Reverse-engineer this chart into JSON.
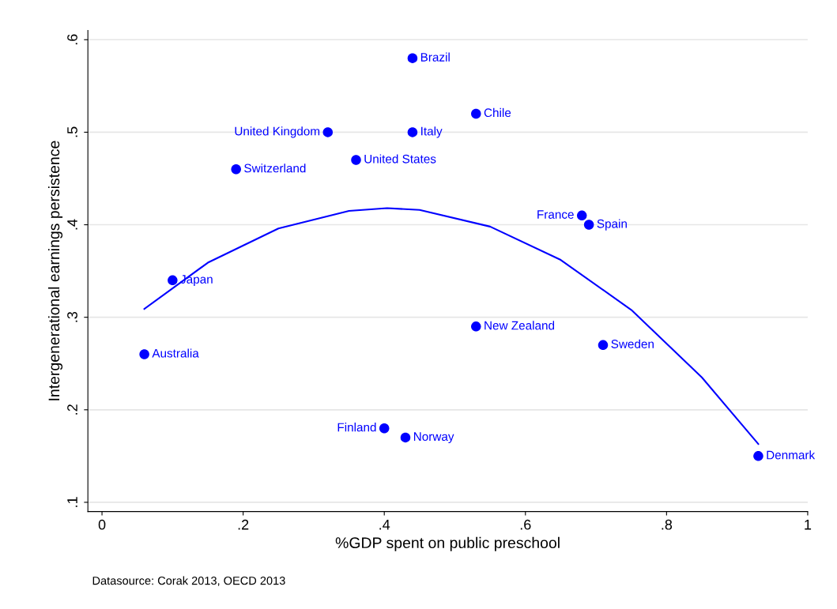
{
  "chart_data": {
    "type": "scatter",
    "xlabel": "%GDP spent on public preschool",
    "ylabel": "Intergenerational earnings persistence",
    "annotations": [
      "Datasource: Corak 2013, OECD 2013"
    ],
    "xlim": [
      -0.02,
      1.0
    ],
    "ylim": [
      0.09,
      0.61
    ],
    "xticks": [
      {
        "value": 0,
        "label": "0"
      },
      {
        "value": 0.2,
        "label": ".2"
      },
      {
        "value": 0.4,
        "label": ".4"
      },
      {
        "value": 0.6,
        "label": ".6"
      },
      {
        "value": 0.8,
        "label": ".8"
      },
      {
        "value": 1,
        "label": "1"
      }
    ],
    "yticks": [
      {
        "value": 0.1,
        "label": ".1"
      },
      {
        "value": 0.2,
        "label": ".2"
      },
      {
        "value": 0.3,
        "label": ".3"
      },
      {
        "value": 0.4,
        "label": ".4"
      },
      {
        "value": 0.5,
        "label": ".5"
      },
      {
        "value": 0.6,
        "label": ".6"
      }
    ],
    "grid": "y",
    "marker": "circle",
    "series": [
      {
        "color": "#0000ff",
        "x": [
          0.44,
          0.53,
          0.32,
          0.44,
          0.36,
          0.19,
          0.68,
          0.69,
          0.1,
          0.53,
          0.71,
          0.06,
          0.4,
          0.43,
          0.93
        ],
        "values": [
          0.58,
          0.52,
          0.5,
          0.5,
          0.47,
          0.46,
          0.41,
          0.4,
          0.34,
          0.29,
          0.27,
          0.26,
          0.18,
          0.17,
          0.15
        ],
        "value_labels": [
          "Brazil",
          "Chile",
          "United Kingdom",
          "Italy",
          "United States",
          "Switzerland",
          "France",
          "Spain",
          "Japan",
          "New Zealand",
          "Sweden",
          "Australia",
          "Finland",
          "Norway",
          "Denmark"
        ]
      },
      {
        "type": "line",
        "color": "#0000ff",
        "marker": "none",
        "line_style": "solid",
        "x": [
          0.06,
          0.15,
          0.25,
          0.35,
          0.404,
          0.45,
          0.55,
          0.65,
          0.75,
          0.85,
          0.93
        ],
        "values": [
          0.309,
          0.359,
          0.396,
          0.415,
          0.418,
          0.416,
          0.398,
          0.362,
          0.308,
          0.235,
          0.163
        ]
      }
    ]
  }
}
